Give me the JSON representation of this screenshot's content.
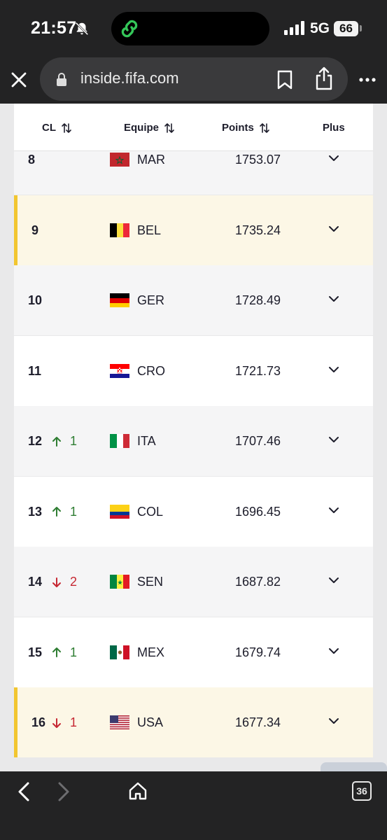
{
  "status_bar": {
    "time": "21:57",
    "network": "5G",
    "battery": "66",
    "icons": [
      "bell-slash-icon",
      "link-icon",
      "signal-icon"
    ]
  },
  "browser": {
    "url": "inside.fifa.com",
    "icons": [
      "close-icon",
      "lock-icon",
      "bookmark-icon",
      "share-icon",
      "more-icon"
    ],
    "tab_count": "36"
  },
  "table": {
    "headers": {
      "rank": "CL",
      "team": "Equipe",
      "points": "Points",
      "more": "Plus"
    },
    "rows": [
      {
        "rank": "8",
        "move_dir": "",
        "move": "",
        "flag": "MAR",
        "team": "MAR",
        "points": "1753.07",
        "style": "grey"
      },
      {
        "rank": "9",
        "move_dir": "",
        "move": "",
        "flag": "BEL",
        "team": "BEL",
        "points": "1735.24",
        "style": "highlight"
      },
      {
        "rank": "10",
        "move_dir": "",
        "move": "",
        "flag": "GER",
        "team": "GER",
        "points": "1728.49",
        "style": "grey"
      },
      {
        "rank": "11",
        "move_dir": "",
        "move": "",
        "flag": "CRO",
        "team": "CRO",
        "points": "1721.73",
        "style": "white"
      },
      {
        "rank": "12",
        "move_dir": "up",
        "move": "1",
        "flag": "ITA",
        "team": "ITA",
        "points": "1707.46",
        "style": "grey"
      },
      {
        "rank": "13",
        "move_dir": "up",
        "move": "1",
        "flag": "COL",
        "team": "COL",
        "points": "1696.45",
        "style": "white"
      },
      {
        "rank": "14",
        "move_dir": "down",
        "move": "2",
        "flag": "SEN",
        "team": "SEN",
        "points": "1687.82",
        "style": "grey"
      },
      {
        "rank": "15",
        "move_dir": "up",
        "move": "1",
        "flag": "MEX",
        "team": "MEX",
        "points": "1679.74",
        "style": "white"
      },
      {
        "rank": "16",
        "move_dir": "down",
        "move": "1",
        "flag": "USA",
        "team": "USA",
        "points": "1677.34",
        "style": "highlight"
      }
    ]
  },
  "scroll_to_top": {
    "label": "^"
  },
  "colors": {
    "up": "#2e7d32",
    "down": "#c62833",
    "highlight_bar": "#f2c630",
    "highlight_bg": "#fcf7e6"
  }
}
